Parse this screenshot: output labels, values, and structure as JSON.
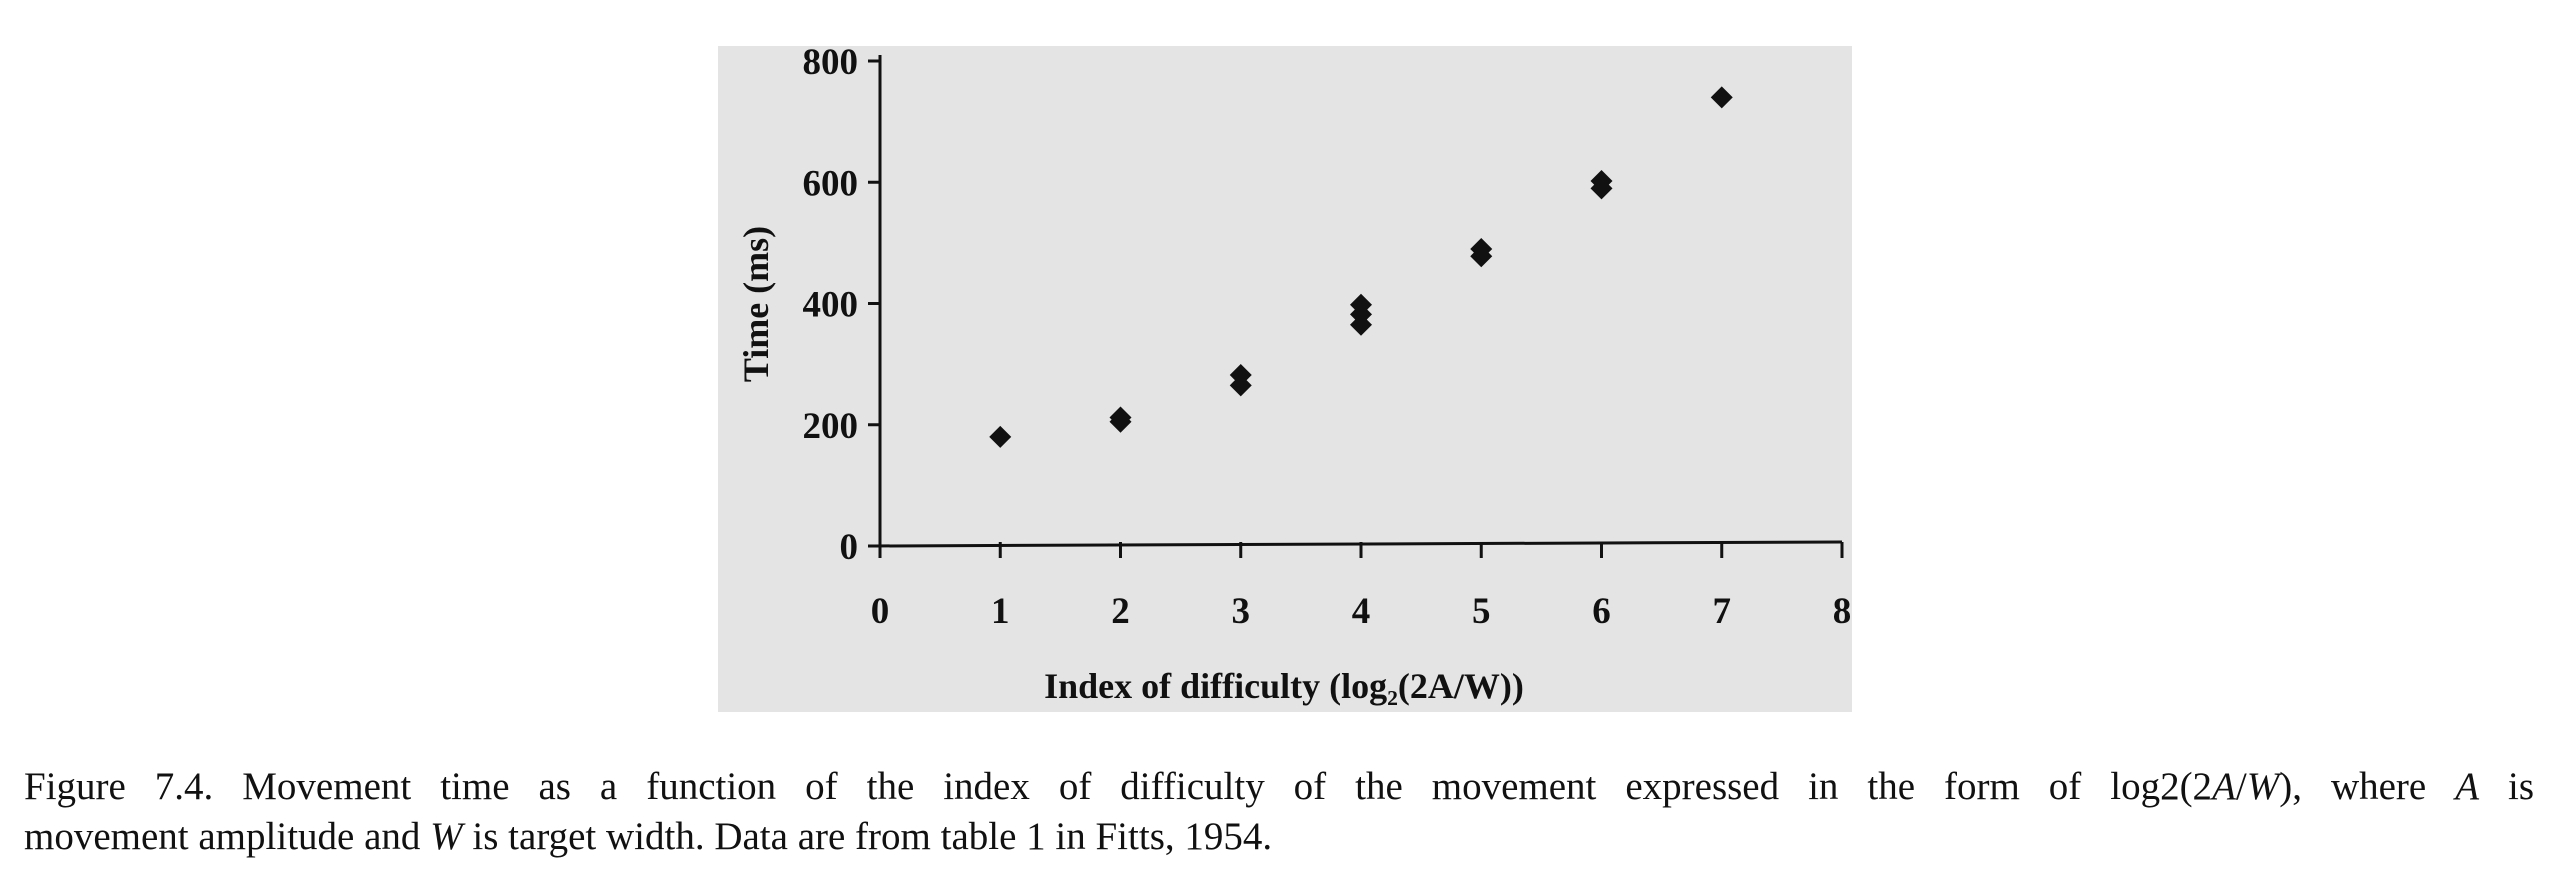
{
  "chart_data": {
    "type": "scatter",
    "xlabel": "Index of difficulty (log₂(2A/W))",
    "ylabel": "Time (ms)",
    "xlim": [
      0,
      8
    ],
    "ylim": [
      0,
      800
    ],
    "x_ticks": [
      "0",
      "1",
      "2",
      "3",
      "4",
      "5",
      "6",
      "7",
      "8"
    ],
    "y_ticks": [
      "0",
      "200",
      "400",
      "600",
      "800"
    ],
    "grid": false,
    "points": [
      {
        "x": 1,
        "y": 180
      },
      {
        "x": 2,
        "y": 205
      },
      {
        "x": 2,
        "y": 212
      },
      {
        "x": 3,
        "y": 265
      },
      {
        "x": 3,
        "y": 282
      },
      {
        "x": 4,
        "y": 365
      },
      {
        "x": 4,
        "y": 382
      },
      {
        "x": 4,
        "y": 398
      },
      {
        "x": 5,
        "y": 478
      },
      {
        "x": 5,
        "y": 490
      },
      {
        "x": 6,
        "y": 590
      },
      {
        "x": 6,
        "y": 602
      },
      {
        "x": 7,
        "y": 740
      }
    ],
    "marker_color": "#111111"
  },
  "caption": {
    "line1_prefix": "Figure 7.4. Movement time as a function of the index of difficulty of the movement expressed in the form of log2(2",
    "var_a": "A",
    "slash": "/",
    "var_w": "W",
    "line1_mid": "), where ",
    "var_a2": "A",
    "line1_suffix": " is",
    "line2_prefix": "movement amplitude and ",
    "var_w2": "W",
    "line2_suffix": " is target width. Data are from table 1 in Fitts, 1954."
  }
}
